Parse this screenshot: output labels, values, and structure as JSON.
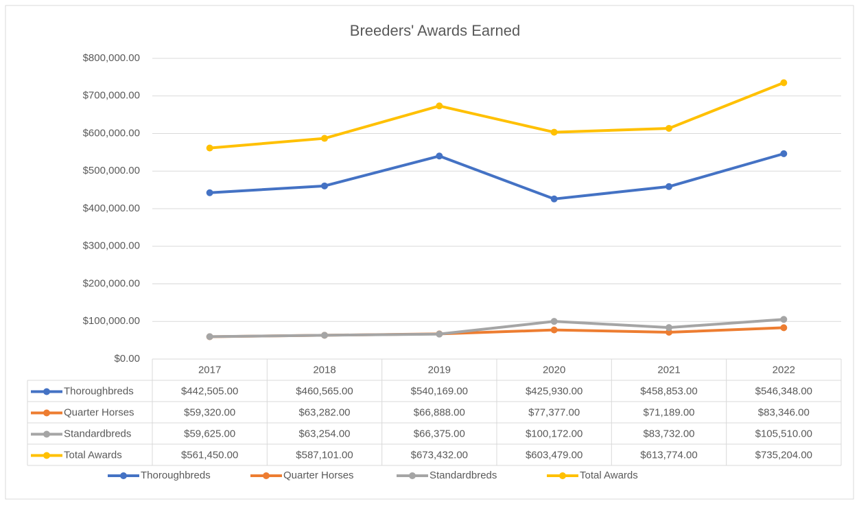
{
  "chart_data": {
    "type": "line",
    "title": "Breeders' Awards Earned",
    "categories": [
      "2017",
      "2018",
      "2019",
      "2020",
      "2021",
      "2022"
    ],
    "series": [
      {
        "name": "Thoroughbreds",
        "color": "#4472c4",
        "values": [
          442505,
          460565,
          540169,
          425930,
          458853,
          546348
        ],
        "value_labels": [
          "$442,505.00",
          "$460,565.00",
          "$540,169.00",
          "$425,930.00",
          "$458,853.00",
          "$546,348.00"
        ]
      },
      {
        "name": "Quarter Horses",
        "color": "#ed7d31",
        "values": [
          59320,
          63282,
          66888,
          77377,
          71189,
          83346
        ],
        "value_labels": [
          "$59,320.00",
          "$63,282.00",
          "$66,888.00",
          "$77,377.00",
          "$71,189.00",
          "$83,346.00"
        ]
      },
      {
        "name": "Standardbreds",
        "color": "#a5a5a5",
        "values": [
          59625,
          63254,
          66375,
          100172,
          83732,
          105510
        ],
        "value_labels": [
          "$59,625.00",
          "$63,254.00",
          "$66,375.00",
          "$100,172.00",
          "$83,732.00",
          "$105,510.00"
        ]
      },
      {
        "name": "Total Awards",
        "color": "#ffc000",
        "values": [
          561450,
          587101,
          673432,
          603479,
          613774,
          735204
        ],
        "value_labels": [
          "$561,450.00",
          "$587,101.00",
          "$673,432.00",
          "$603,479.00",
          "$613,774.00",
          "$735,204.00"
        ]
      }
    ],
    "ylim": [
      0,
      800000
    ],
    "yticks": [
      {
        "value": 0,
        "label": "$0.00"
      },
      {
        "value": 100000,
        "label": "$100,000.00"
      },
      {
        "value": 200000,
        "label": "$200,000.00"
      },
      {
        "value": 300000,
        "label": "$300,000.00"
      },
      {
        "value": 400000,
        "label": "$400,000.00"
      },
      {
        "value": 500000,
        "label": "$500,000.00"
      },
      {
        "value": 600000,
        "label": "$600,000.00"
      },
      {
        "value": 700000,
        "label": "$700,000.00"
      },
      {
        "value": 800000,
        "label": "$800,000.00"
      }
    ],
    "grid": true,
    "legend": "bottom"
  }
}
